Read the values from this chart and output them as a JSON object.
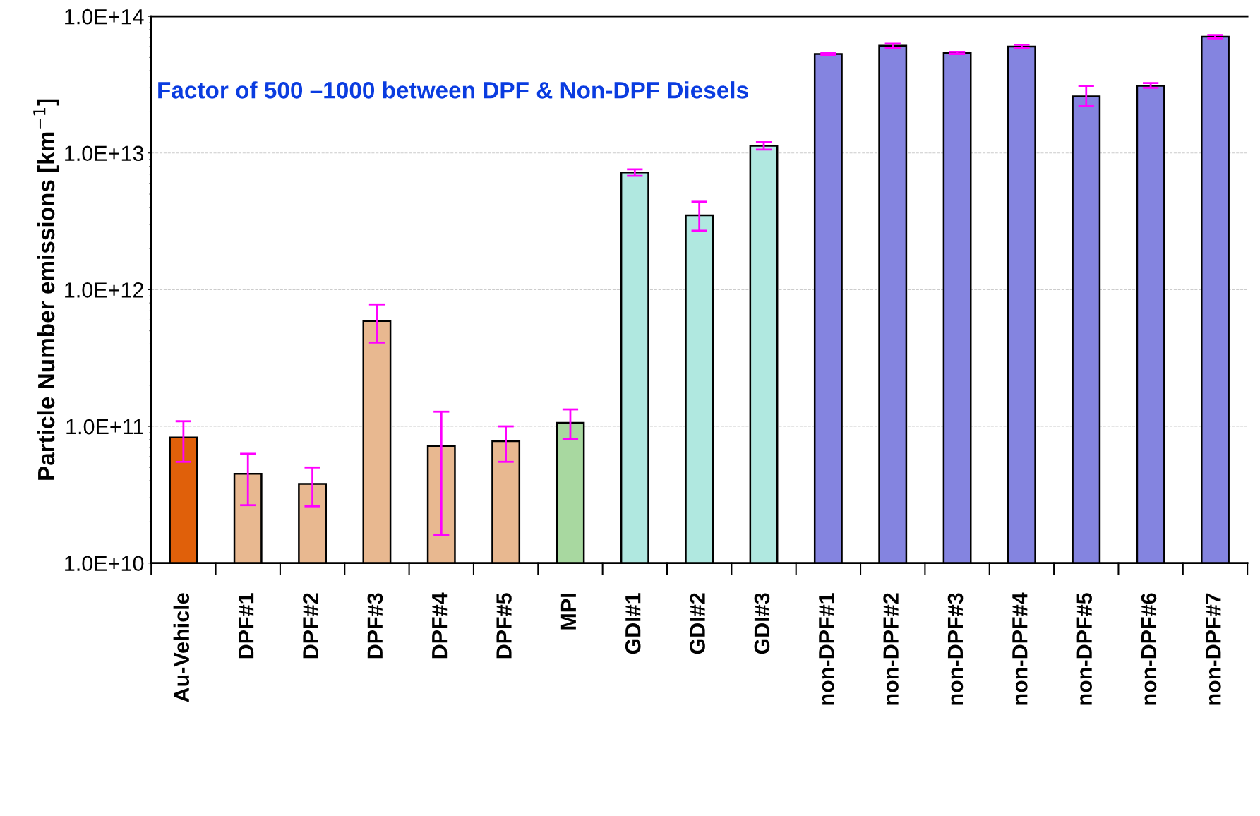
{
  "chart_data": {
    "type": "bar",
    "ylabel": "Particle Number emissions [km$^{−1}$]",
    "categories": [
      "Au-Vehicle",
      "DPF#1",
      "DPF#2",
      "DPF#3",
      "DPF#4",
      "DPF#5",
      "MPI",
      "GDI#1",
      "GDI#2",
      "GDI#3",
      "non-DPF#1",
      "non-DPF#2",
      "non-DPF#3",
      "non-DPF#4",
      "non-DPF#5",
      "non-DPF#6",
      "non-DPF#7"
    ],
    "values": [
      83000000000.0,
      45000000000.0,
      38000000000.0,
      590000000000.0,
      72000000000.0,
      78000000000.0,
      106000000000.0,
      7200000000000.0,
      3500000000000.0,
      11300000000000.0,
      53000000000000.0,
      61000000000000.0,
      54000000000000.0,
      60000000000000.0,
      26000000000000.0,
      31000000000000.0,
      71000000000000.0
    ],
    "errors": [
      [
        55000000000.0,
        109000000000.0
      ],
      [
        26500000000.0,
        63000000000.0
      ],
      [
        26000000000.0,
        50000000000.0
      ],
      [
        410000000000.0,
        780000000000.0
      ],
      [
        16000000000.0,
        128000000000.0
      ],
      [
        55000000000.0,
        100000000000.0
      ],
      [
        81000000000.0,
        133000000000.0
      ],
      [
        6800000000000.0,
        7600000000000.0
      ],
      [
        2700000000000.0,
        4400000000000.0
      ],
      [
        10600000000000.0,
        12000000000000.0
      ],
      [
        52000000000000.0,
        54000000000000.0
      ],
      [
        59000000000000.0,
        63000000000000.0
      ],
      [
        53000000000000.0,
        55000000000000.0
      ],
      [
        59000000000000.0,
        62000000000000.0
      ],
      [
        22000000000000.0,
        31000000000000.0
      ],
      [
        30000000000000.0,
        32500000000000.0
      ],
      [
        69000000000000.0,
        73000000000000.0
      ]
    ],
    "colors": [
      "#e0600a",
      "#e8b890",
      "#e8b890",
      "#e8b890",
      "#e8b890",
      "#e8b890",
      "#a8d8a0",
      "#b0e8e0",
      "#b0e8e0",
      "#b0e8e0",
      "#8484e0",
      "#8484e0",
      "#8484e0",
      "#8484e0",
      "#8484e0",
      "#8484e0",
      "#8484e0"
    ],
    "log": true,
    "ylim": [
      10000000000.0,
      100000000000000.0
    ],
    "yticks": [
      {
        "value": 10000000000.0,
        "label": "1.0E+10"
      },
      {
        "value": 100000000000.0,
        "label": "1.0E+11"
      },
      {
        "value": 1000000000000.0,
        "label": "1.0E+12"
      },
      {
        "value": 10000000000000.0,
        "label": "1.0E+13"
      },
      {
        "value": 100000000000000.0,
        "label": "1.0E+14"
      }
    ],
    "grid": "y",
    "annotations": [
      "Factor of 500 –1000 between DPF & Non-DPF Diesels"
    ]
  }
}
